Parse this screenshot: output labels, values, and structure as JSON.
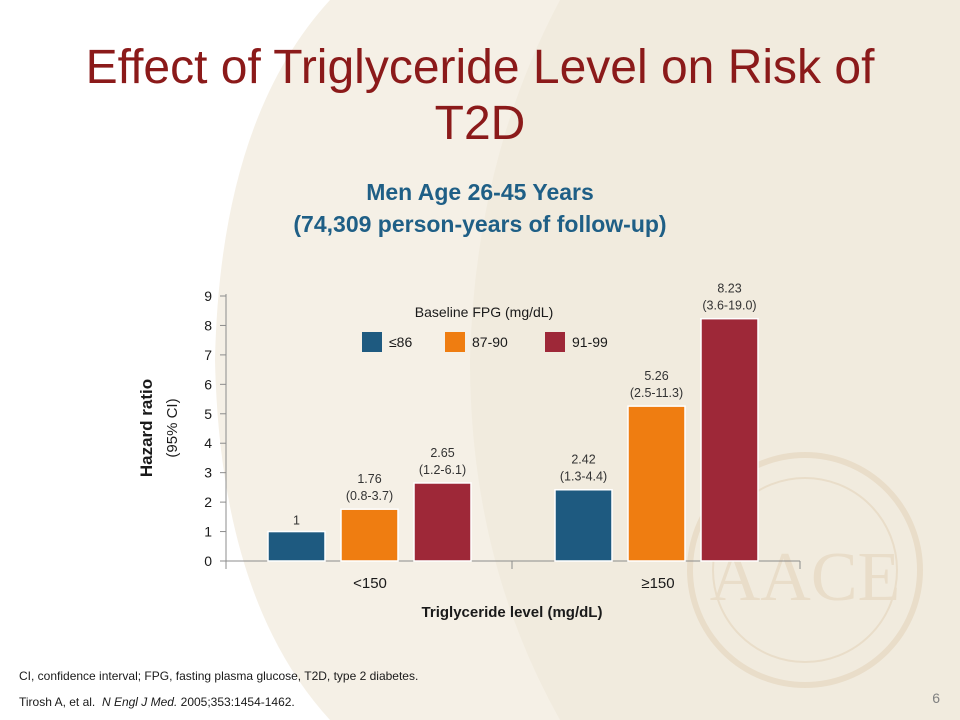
{
  "slide": {
    "title": "Effect of Triglyceride Level on Risk of T2D",
    "subtitle_line1": "Men Age 26-45 Years",
    "subtitle_line2": "(74,309 person-years of follow-up)",
    "footnote": "CI, confidence interval; FPG, fasting plasma glucose, T2D, type 2 diabetes.",
    "citation_authors": "Tirosh A, et al.",
    "citation_journal": "N Engl J Med.",
    "citation_details": "2005;353:1454-1462.",
    "page_number": "6",
    "watermark_text": "AACE"
  },
  "colors": {
    "title": "#8b1a1a",
    "subtitle": "#1f5f86",
    "series_1": "#1e5a80",
    "series_2": "#ef7d11",
    "series_3": "#9e2838",
    "background_arc": "#f3ede2"
  },
  "chart_data": {
    "type": "bar",
    "xlabel": "Triglyceride level (mg/dL)",
    "ylabel": "Hazard ratio",
    "ylabel_sub": "(95% CI)",
    "ylim": [
      0,
      9
    ],
    "yticks": [
      "0",
      "1",
      "2",
      "3",
      "4",
      "5",
      "6",
      "7",
      "8",
      "9"
    ],
    "categories": [
      "<150",
      "≥150"
    ],
    "legend_title": "Baseline FPG (mg/dL)",
    "legend_position": "top-center",
    "grid": false,
    "series": [
      {
        "name": "≤86",
        "values": [
          1,
          2.42
        ],
        "labels": [
          "1",
          "2.42"
        ],
        "ci": [
          "",
          "(1.3-4.4)"
        ]
      },
      {
        "name": "87-90",
        "values": [
          1.76,
          5.26
        ],
        "labels": [
          "1.76",
          "5.26"
        ],
        "ci": [
          "(0.8-3.7)",
          "(2.5-11.3)"
        ]
      },
      {
        "name": "91-99",
        "values": [
          2.65,
          8.23
        ],
        "labels": [
          "2.65",
          "8.23"
        ],
        "ci": [
          "(1.2-6.1)",
          "(3.6-19.0)"
        ]
      }
    ]
  }
}
